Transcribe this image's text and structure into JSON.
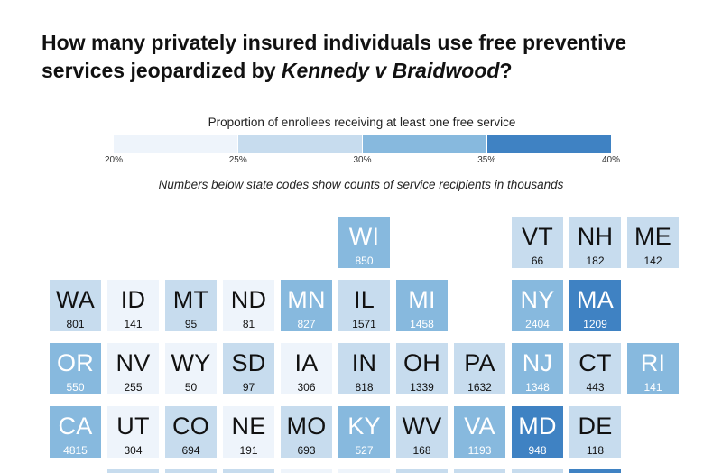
{
  "title": {
    "before": "How many privately insured individuals use free preventive services jeopardized by ",
    "case": "Kennedy v Braidwood",
    "after": "?"
  },
  "legend": {
    "title": "Proportion of enrollees receiving at least one free service",
    "ticks": [
      "20%",
      "25%",
      "30%",
      "35%",
      "40%"
    ],
    "bins": [
      {
        "range": "20%–25%",
        "color": "#eef4fb"
      },
      {
        "range": "25%–30%",
        "color": "#c7dcee"
      },
      {
        "range": "30%–35%",
        "color": "#87b9de"
      },
      {
        "range": "35%–40%",
        "color": "#3f82c3"
      }
    ]
  },
  "note": "Numbers below state codes show counts of service recipients in thousands",
  "map_data": {
    "type": "tile-grid-map",
    "value_unit": "thousands of service recipients",
    "states": [
      {
        "code": "WI",
        "count": "850",
        "bin": 2,
        "row": 0,
        "col": 5
      },
      {
        "code": "VT",
        "count": "66",
        "bin": 1,
        "row": 0,
        "col": 8
      },
      {
        "code": "NH",
        "count": "182",
        "bin": 1,
        "row": 0,
        "col": 9
      },
      {
        "code": "ME",
        "count": "142",
        "bin": 1,
        "row": 0,
        "col": 10
      },
      {
        "code": "WA",
        "count": "801",
        "bin": 1,
        "row": 1,
        "col": 0
      },
      {
        "code": "ID",
        "count": "141",
        "bin": 0,
        "row": 1,
        "col": 1
      },
      {
        "code": "MT",
        "count": "95",
        "bin": 1,
        "row": 1,
        "col": 2
      },
      {
        "code": "ND",
        "count": "81",
        "bin": 0,
        "row": 1,
        "col": 3
      },
      {
        "code": "MN",
        "count": "827",
        "bin": 2,
        "row": 1,
        "col": 4
      },
      {
        "code": "IL",
        "count": "1571",
        "bin": 1,
        "row": 1,
        "col": 5
      },
      {
        "code": "MI",
        "count": "1458",
        "bin": 2,
        "row": 1,
        "col": 6
      },
      {
        "code": "NY",
        "count": "2404",
        "bin": 2,
        "row": 1,
        "col": 8
      },
      {
        "code": "MA",
        "count": "1209",
        "bin": 3,
        "row": 1,
        "col": 9
      },
      {
        "code": "OR",
        "count": "550",
        "bin": 2,
        "row": 2,
        "col": 0
      },
      {
        "code": "NV",
        "count": "255",
        "bin": 0,
        "row": 2,
        "col": 1
      },
      {
        "code": "WY",
        "count": "50",
        "bin": 0,
        "row": 2,
        "col": 2
      },
      {
        "code": "SD",
        "count": "97",
        "bin": 1,
        "row": 2,
        "col": 3
      },
      {
        "code": "IA",
        "count": "306",
        "bin": 0,
        "row": 2,
        "col": 4
      },
      {
        "code": "IN",
        "count": "818",
        "bin": 1,
        "row": 2,
        "col": 5
      },
      {
        "code": "OH",
        "count": "1339",
        "bin": 1,
        "row": 2,
        "col": 6
      },
      {
        "code": "PA",
        "count": "1632",
        "bin": 1,
        "row": 2,
        "col": 7
      },
      {
        "code": "NJ",
        "count": "1348",
        "bin": 2,
        "row": 2,
        "col": 8
      },
      {
        "code": "CT",
        "count": "443",
        "bin": 1,
        "row": 2,
        "col": 9
      },
      {
        "code": "RI",
        "count": "141",
        "bin": 2,
        "row": 2,
        "col": 10
      },
      {
        "code": "CA",
        "count": "4815",
        "bin": 2,
        "row": 3,
        "col": 0
      },
      {
        "code": "UT",
        "count": "304",
        "bin": 0,
        "row": 3,
        "col": 1
      },
      {
        "code": "CO",
        "count": "694",
        "bin": 1,
        "row": 3,
        "col": 2
      },
      {
        "code": "NE",
        "count": "191",
        "bin": 0,
        "row": 3,
        "col": 3
      },
      {
        "code": "MO",
        "count": "693",
        "bin": 1,
        "row": 3,
        "col": 4
      },
      {
        "code": "KY",
        "count": "527",
        "bin": 2,
        "row": 3,
        "col": 5
      },
      {
        "code": "WV",
        "count": "168",
        "bin": 1,
        "row": 3,
        "col": 6
      },
      {
        "code": "VA",
        "count": "1193",
        "bin": 2,
        "row": 3,
        "col": 7
      },
      {
        "code": "MD",
        "count": "948",
        "bin": 3,
        "row": 3,
        "col": 8
      },
      {
        "code": "DE",
        "count": "118",
        "bin": 1,
        "row": 3,
        "col": 9
      }
    ],
    "partial_row_bins": [
      1,
      1,
      1,
      0,
      0,
      1,
      1,
      1,
      3
    ]
  }
}
